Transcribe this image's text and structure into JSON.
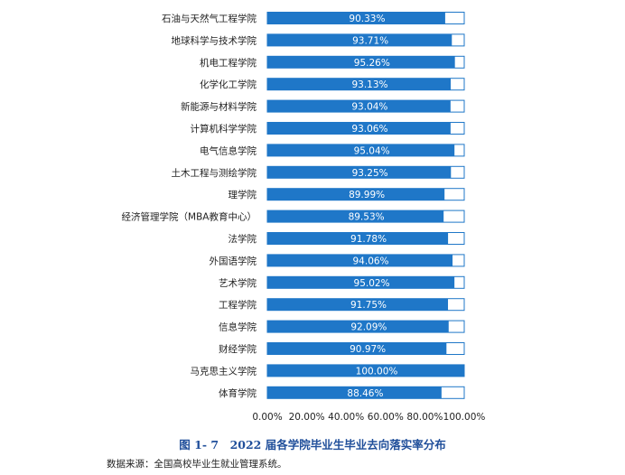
{
  "chart_data": {
    "type": "bar",
    "orientation": "horizontal",
    "categories": [
      "石油与天然气工程学院",
      "地球科学与技术学院",
      "机电工程学院",
      "化学化工学院",
      "新能源与材料学院",
      "计算机科学学院",
      "电气信息学院",
      "土木工程与测绘学院",
      "理学院",
      "经济管理学院（MBA教育中心）",
      "法学院",
      "外国语学院",
      "艺术学院",
      "工程学院",
      "信息学院",
      "财经学院",
      "马克思主义学院",
      "体育学院"
    ],
    "values": [
      90.33,
      93.71,
      95.26,
      93.13,
      93.04,
      93.06,
      95.04,
      93.25,
      89.99,
      89.53,
      91.78,
      94.06,
      95.02,
      91.75,
      92.09,
      90.97,
      100.0,
      88.46
    ],
    "value_labels": [
      "90.33%",
      "93.71%",
      "95.26%",
      "93.13%",
      "93.04%",
      "93.06%",
      "95.04%",
      "93.25%",
      "89.99%",
      "89.53%",
      "91.78%",
      "94.06%",
      "95.02%",
      "91.75%",
      "92.09%",
      "90.97%",
      "100.00%",
      "88.46%"
    ],
    "xlim": [
      0,
      100
    ],
    "x_ticks": [
      0,
      20,
      40,
      60,
      80,
      100
    ],
    "x_tick_labels": [
      "0.00%",
      "20.00%",
      "40.00%",
      "60.00%",
      "80.00%",
      "100.00%"
    ],
    "grid": false,
    "colors": {
      "bar": "#1f77c8",
      "bar_background": "#ffffff",
      "bar_outline": "#1f77c8"
    }
  },
  "caption": "图 1- 7　2022 届各学院毕业生毕业去向落实率分布",
  "source_note": "数据来源：全国高校毕业生就业管理系统。"
}
